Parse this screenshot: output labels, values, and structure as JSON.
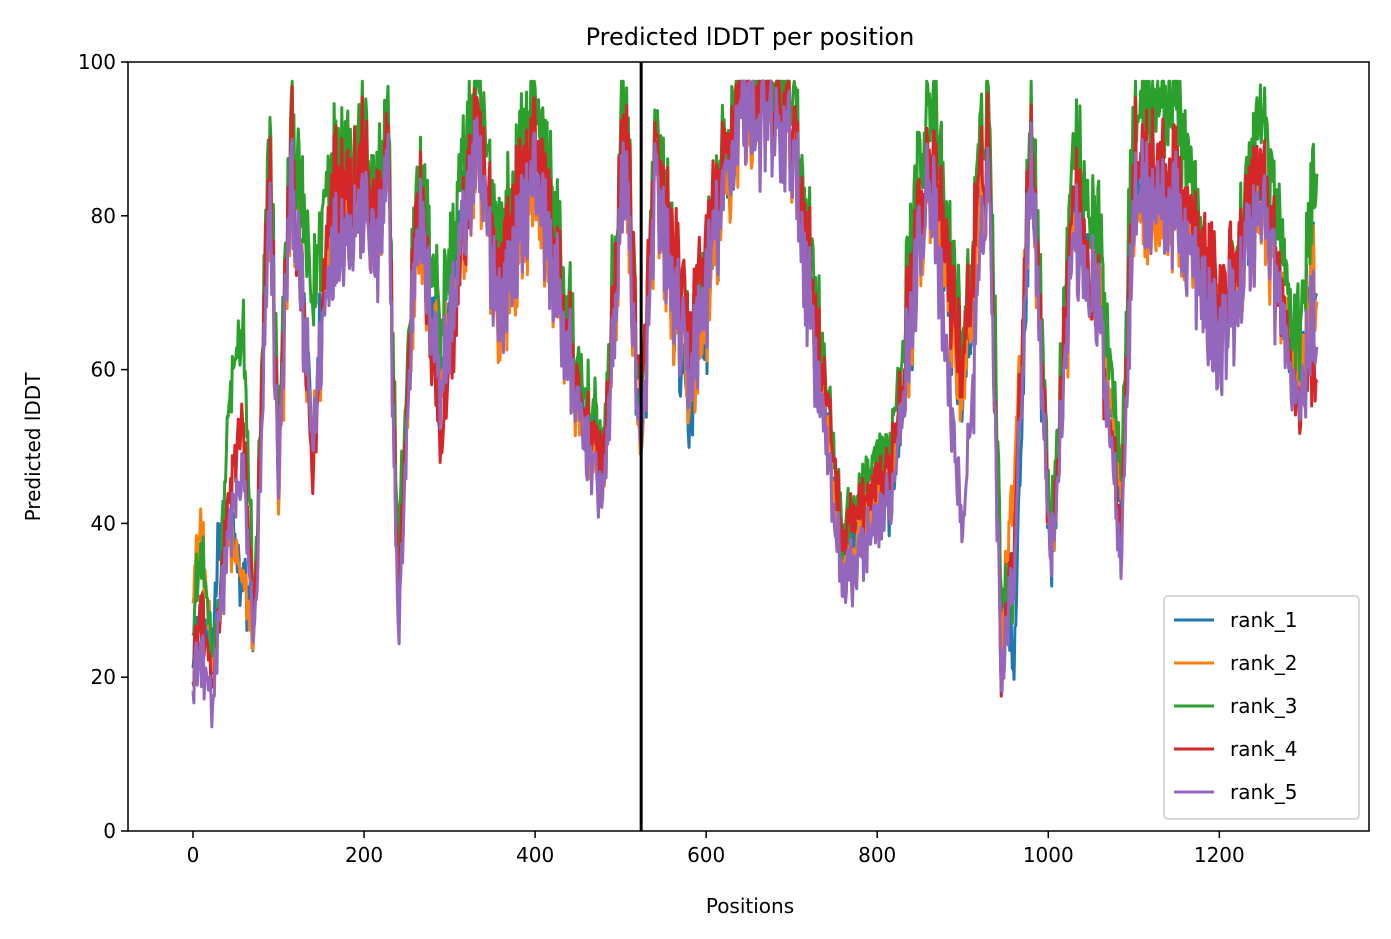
{
  "chart_data": {
    "type": "line",
    "title": "Predicted lDDT per position",
    "xlabel": "Positions",
    "ylabel": "Predicted lDDT",
    "xlim": [
      -76,
      1375
    ],
    "ylim": [
      0,
      100
    ],
    "xticks": [
      0,
      200,
      400,
      600,
      800,
      1000,
      1200
    ],
    "yticks": [
      0,
      20,
      40,
      60,
      80,
      100
    ],
    "xtick_labels": [
      "0",
      "200",
      "400",
      "600",
      "800",
      "1000",
      "1200"
    ],
    "ytick_labels": [
      "0",
      "20",
      "40",
      "60",
      "80",
      "100"
    ],
    "grid": false,
    "legend_position": "lower-right",
    "vline": {
      "x": 524,
      "color": "#000000"
    },
    "series": [
      {
        "name": "rank_1",
        "color": "#1f77b4",
        "offset": 0.4,
        "x": [
          0,
          10,
          22,
          30,
          42,
          58,
          72,
          90,
          100,
          115,
          140,
          160,
          200,
          215,
          228,
          240,
          262,
          290,
          330,
          360,
          400,
          450,
          480,
          505,
          524,
          540,
          580,
          640,
          700,
          760,
          815,
          860,
          900,
          930,
          945,
          960,
          980,
          1003,
          1030,
          1060,
          1085,
          1100,
          1150,
          1200,
          1250,
          1290,
          1314
        ],
        "values": [
          24,
          28,
          22,
          38,
          40,
          31,
          27,
          85,
          46,
          88,
          51,
          80,
          86,
          76,
          86,
          30,
          82,
          61,
          88,
          70,
          87,
          56,
          46,
          89,
          48,
          85,
          53,
          95,
          91,
          36,
          42,
          87,
          56,
          90,
          30,
          23,
          90,
          33,
          80,
          69,
          44,
          84,
          81,
          64,
          83,
          57,
          74
        ]
      },
      {
        "name": "rank_2",
        "color": "#ff7f0e",
        "offset": -0.4,
        "x": [
          0,
          10,
          22,
          30,
          42,
          58,
          72,
          90,
          100,
          115,
          140,
          160,
          200,
          215,
          228,
          240,
          262,
          290,
          330,
          360,
          400,
          450,
          480,
          505,
          524,
          540,
          580,
          640,
          700,
          760,
          815,
          860,
          900,
          930,
          945,
          960,
          980,
          1003,
          1030,
          1060,
          1085,
          1100,
          1150,
          1200,
          1250,
          1290,
          1314
        ],
        "values": [
          33,
          40,
          21,
          28,
          38,
          33,
          26,
          84,
          44,
          87,
          50,
          78,
          84,
          74,
          85,
          29,
          80,
          60,
          86,
          67,
          85,
          54,
          45,
          88,
          47,
          83,
          57,
          94,
          90,
          35,
          45,
          86,
          58,
          89,
          27,
          47,
          90,
          35,
          79,
          70,
          48,
          82,
          80,
          66,
          82,
          59,
          73
        ]
      },
      {
        "name": "rank_3",
        "color": "#2ca02c",
        "offset": 2.2,
        "x": [
          0,
          10,
          22,
          30,
          42,
          58,
          72,
          90,
          100,
          115,
          140,
          160,
          200,
          215,
          228,
          240,
          262,
          290,
          330,
          360,
          400,
          450,
          480,
          505,
          524,
          540,
          580,
          640,
          700,
          760,
          815,
          860,
          900,
          930,
          945,
          960,
          980,
          1003,
          1030,
          1060,
          1085,
          1100,
          1150,
          1200,
          1250,
          1290,
          1314
        ],
        "values": [
          26,
          35,
          20,
          26,
          54,
          63,
          27,
          90,
          48,
          91,
          66,
          86,
          88,
          80,
          90,
          33,
          85,
          65,
          95,
          74,
          94,
          58,
          48,
          95,
          50,
          88,
          60,
          97,
          95,
          37,
          48,
          95,
          61,
          96,
          29,
          30,
          96,
          36,
          88,
          74,
          45,
          92,
          94,
          60,
          93,
          60,
          86
        ]
      },
      {
        "name": "rank_4",
        "color": "#d62728",
        "offset": 1.0,
        "x": [
          0,
          10,
          22,
          30,
          42,
          58,
          72,
          90,
          100,
          115,
          140,
          160,
          200,
          215,
          228,
          240,
          262,
          290,
          330,
          360,
          400,
          450,
          480,
          505,
          524,
          540,
          580,
          640,
          700,
          760,
          815,
          860,
          900,
          930,
          945,
          960,
          980,
          1003,
          1030,
          1060,
          1085,
          1100,
          1150,
          1200,
          1250,
          1290,
          1314
        ],
        "values": [
          21,
          27,
          18,
          27,
          42,
          52,
          26,
          88,
          46,
          89,
          45,
          83,
          86,
          77,
          88,
          28,
          84,
          50,
          90,
          71,
          90,
          55,
          46,
          93,
          53,
          86,
          64,
          96,
          92,
          38,
          46,
          89,
          60,
          92,
          19,
          38,
          92,
          34,
          83,
          66,
          39,
          86,
          84,
          66,
          87,
          53,
          63
        ]
      },
      {
        "name": "rank_5",
        "color": "#9467bd",
        "offset": -1.4,
        "x": [
          0,
          10,
          22,
          30,
          42,
          58,
          72,
          90,
          100,
          115,
          140,
          160,
          200,
          215,
          228,
          240,
          262,
          290,
          330,
          360,
          400,
          450,
          480,
          505,
          524,
          540,
          580,
          640,
          700,
          760,
          815,
          860,
          900,
          930,
          945,
          960,
          980,
          1003,
          1030,
          1060,
          1085,
          1100,
          1150,
          1200,
          1250,
          1290,
          1314
        ],
        "values": [
          22,
          25,
          16,
          30,
          40,
          48,
          25,
          84,
          47,
          87,
          52,
          77,
          82,
          75,
          87,
          27,
          83,
          60,
          89,
          69,
          88,
          55,
          45,
          89,
          49,
          84,
          60,
          95,
          90,
          33,
          44,
          88,
          40,
          90,
          21,
          36,
          91,
          35,
          80,
          68,
          38,
          84,
          82,
          63,
          84,
          56,
          69
        ]
      }
    ]
  }
}
